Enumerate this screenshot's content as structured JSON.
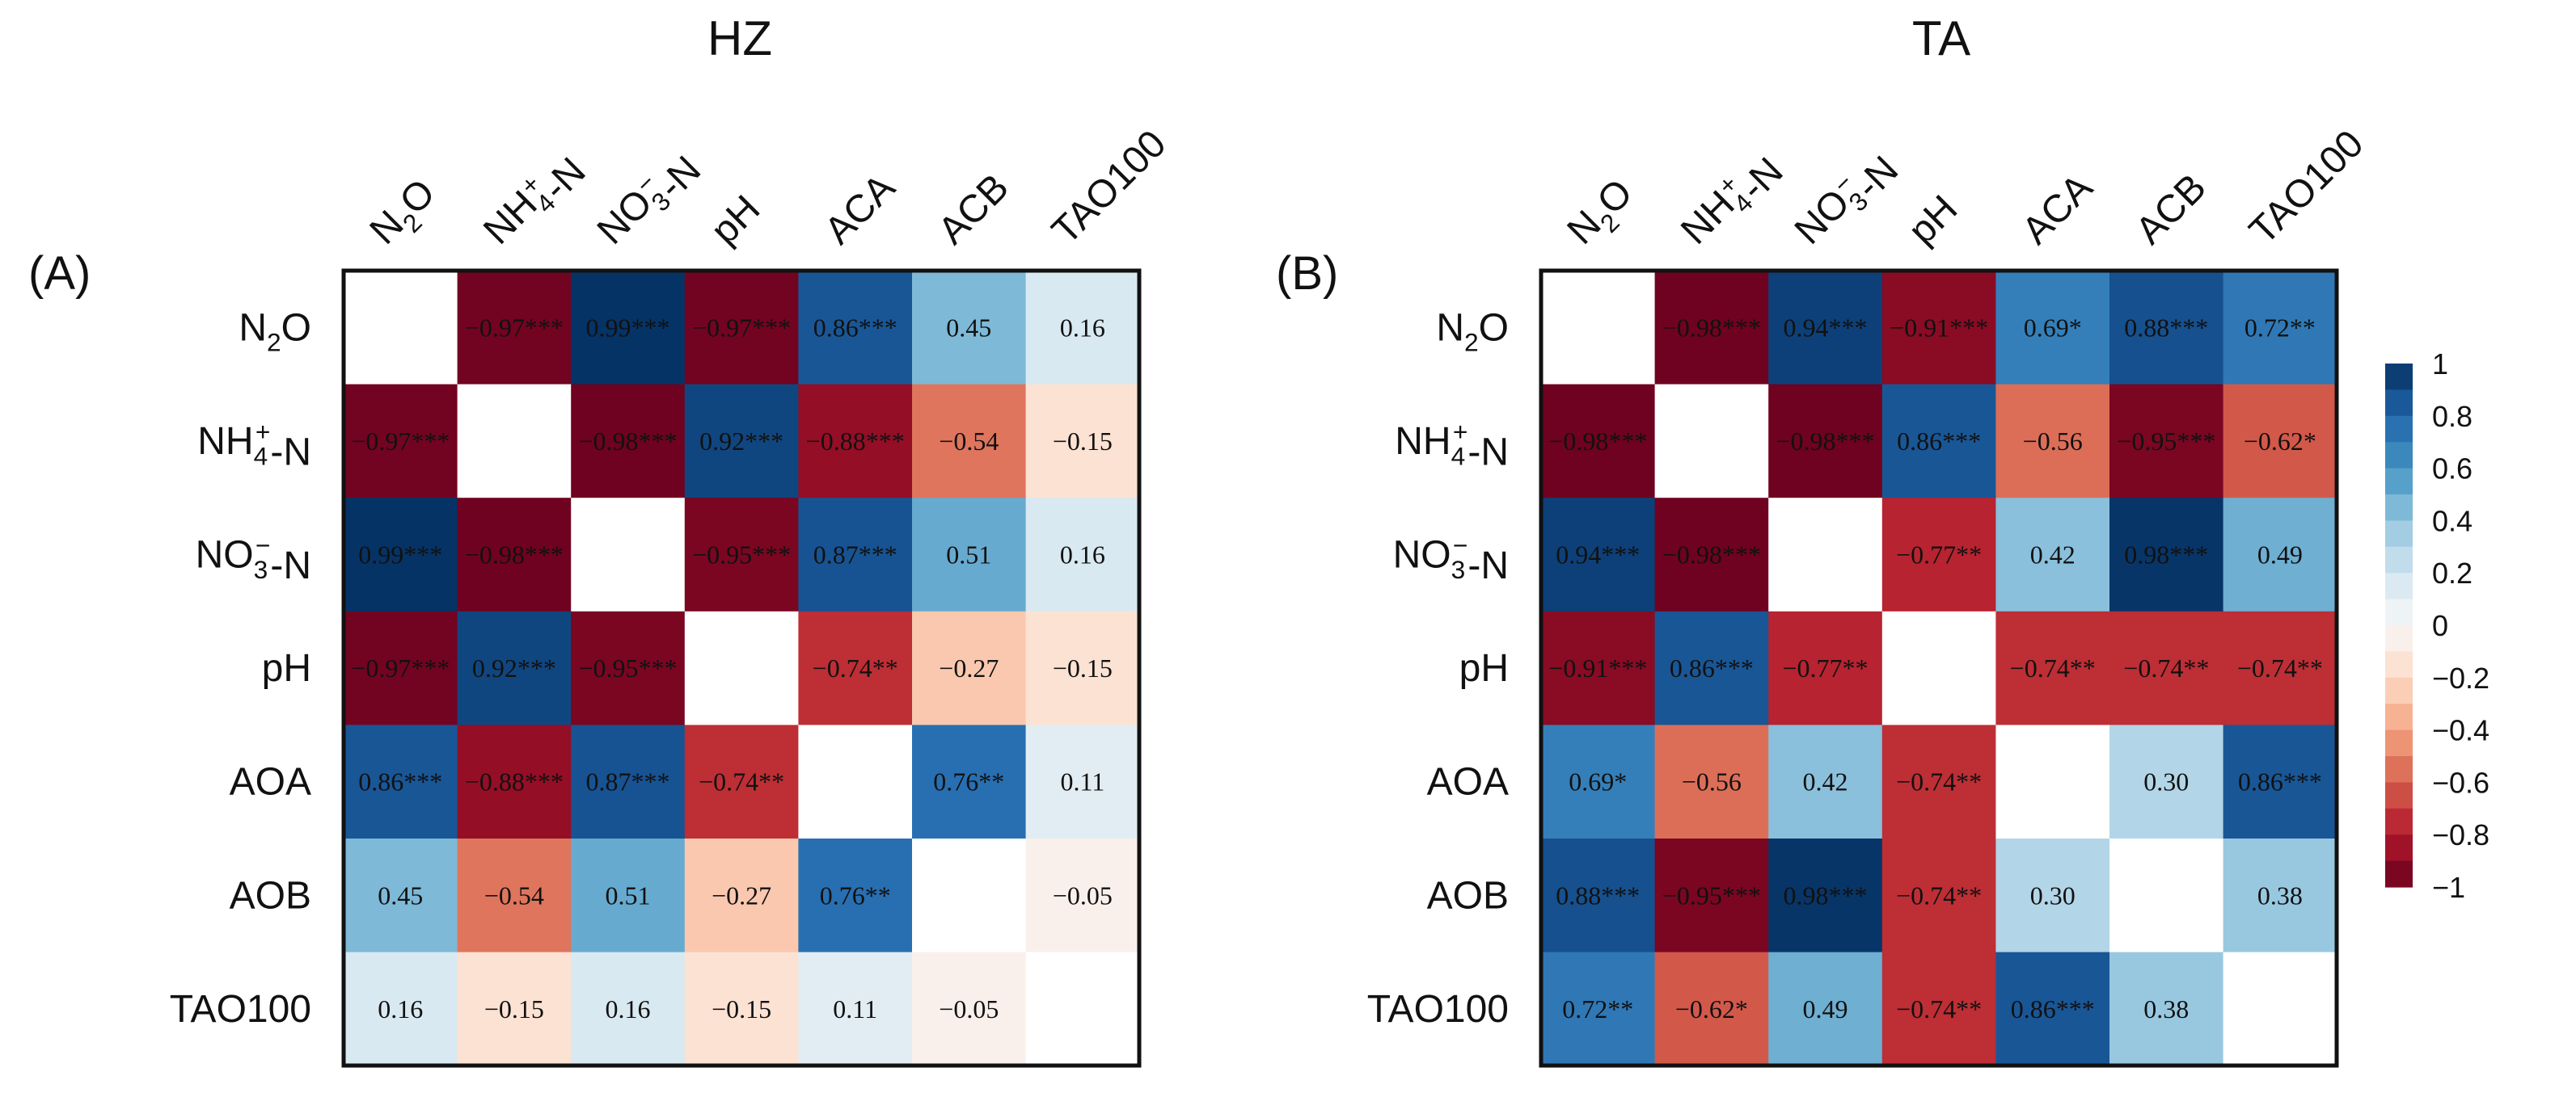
{
  "chart_data": [
    {
      "type": "heatmap",
      "panel_label": "(A)",
      "title": "HZ",
      "rows": [
        "N2O",
        "NH4+-N",
        "NO3−-N",
        "pH",
        "AOA",
        "AOB",
        "TAO100"
      ],
      "row_labels": [
        {
          "main": "N",
          "sub": "2",
          "sup": "",
          "rest": "O"
        },
        {
          "main": "NH",
          "sub": "4",
          "sup": "+",
          "rest": "-N"
        },
        {
          "main": "NO",
          "sub": "3",
          "sup": "−",
          "rest": "-N"
        },
        {
          "main": "pH",
          "sub": "",
          "sup": "",
          "rest": ""
        },
        {
          "main": "AOA",
          "sub": "",
          "sup": "",
          "rest": ""
        },
        {
          "main": "AOB",
          "sub": "",
          "sup": "",
          "rest": ""
        },
        {
          "main": "TAO100",
          "sub": "",
          "sup": "",
          "rest": ""
        }
      ],
      "columns": [
        "N2O",
        "NH4+-N",
        "NO3−-N",
        "pH",
        "ACA",
        "ACB",
        "TAO100"
      ],
      "column_labels": [
        {
          "main": "N",
          "sub": "2",
          "sup": "",
          "rest": "O"
        },
        {
          "main": "NH",
          "sub": "4",
          "sup": "+",
          "rest": "-N"
        },
        {
          "main": "NO",
          "sub": "3",
          "sup": "−",
          "rest": "-N"
        },
        {
          "main": "pH",
          "sub": "",
          "sup": "",
          "rest": ""
        },
        {
          "main": "ACA",
          "sub": "",
          "sup": "",
          "rest": ""
        },
        {
          "main": "ACB",
          "sub": "",
          "sup": "",
          "rest": ""
        },
        {
          "main": "TAO100",
          "sub": "",
          "sup": "",
          "rest": ""
        }
      ],
      "values": [
        [
          null,
          -0.97,
          0.99,
          -0.97,
          0.86,
          0.45,
          0.16
        ],
        [
          -0.97,
          null,
          -0.98,
          0.92,
          -0.88,
          -0.54,
          -0.15
        ],
        [
          0.99,
          -0.98,
          null,
          -0.95,
          0.87,
          0.51,
          0.16
        ],
        [
          -0.97,
          0.92,
          -0.95,
          null,
          -0.74,
          -0.27,
          -0.15
        ],
        [
          0.86,
          -0.88,
          0.87,
          -0.74,
          null,
          0.76,
          0.11
        ],
        [
          0.45,
          -0.54,
          0.51,
          -0.27,
          0.76,
          null,
          -0.05
        ],
        [
          0.16,
          -0.15,
          0.16,
          -0.15,
          0.11,
          -0.05,
          null
        ]
      ],
      "labels": [
        [
          "",
          "−0.97***",
          "0.99***",
          "−0.97***",
          "0.86***",
          "0.45",
          "0.16"
        ],
        [
          "−0.97***",
          "",
          "−0.98***",
          "0.92***",
          "−0.88***",
          "−0.54",
          "−0.15"
        ],
        [
          "0.99***",
          "−0.98***",
          "",
          "−0.95***",
          "0.87***",
          "0.51",
          "0.16"
        ],
        [
          "−0.97***",
          "0.92***",
          "−0.95***",
          "",
          "−0.74**",
          "−0.27",
          "−0.15"
        ],
        [
          "0.86***",
          "−0.88***",
          "0.87***",
          "−0.74**",
          "",
          "0.76**",
          "0.11"
        ],
        [
          "0.45",
          "−0.54",
          "0.51",
          "−0.27",
          "0.76**",
          "",
          "−0.05"
        ],
        [
          "0.16",
          "−0.15",
          "0.16",
          "−0.15",
          "0.11",
          "−0.05",
          ""
        ]
      ]
    },
    {
      "type": "heatmap",
      "panel_label": "(B)",
      "title": "TA",
      "rows": [
        "N2O",
        "NH4+-N",
        "NO3−-N",
        "pH",
        "AOA",
        "AOB",
        "TAO100"
      ],
      "row_labels": [
        {
          "main": "N",
          "sub": "2",
          "sup": "",
          "rest": "O"
        },
        {
          "main": "NH",
          "sub": "4",
          "sup": "+",
          "rest": "-N"
        },
        {
          "main": "NO",
          "sub": "3",
          "sup": "−",
          "rest": "-N"
        },
        {
          "main": "pH",
          "sub": "",
          "sup": "",
          "rest": ""
        },
        {
          "main": "AOA",
          "sub": "",
          "sup": "",
          "rest": ""
        },
        {
          "main": "AOB",
          "sub": "",
          "sup": "",
          "rest": ""
        },
        {
          "main": "TAO100",
          "sub": "",
          "sup": "",
          "rest": ""
        }
      ],
      "columns": [
        "N2O",
        "NH4+-N",
        "NO3−-N",
        "pH",
        "ACA",
        "ACB",
        "TAO100"
      ],
      "column_labels": [
        {
          "main": "N",
          "sub": "2",
          "sup": "",
          "rest": "O"
        },
        {
          "main": "NH",
          "sub": "4",
          "sup": "+",
          "rest": "-N"
        },
        {
          "main": "NO",
          "sub": "3",
          "sup": "−",
          "rest": "-N"
        },
        {
          "main": "pH",
          "sub": "",
          "sup": "",
          "rest": ""
        },
        {
          "main": "ACA",
          "sub": "",
          "sup": "",
          "rest": ""
        },
        {
          "main": "ACB",
          "sub": "",
          "sup": "",
          "rest": ""
        },
        {
          "main": "TAO100",
          "sub": "",
          "sup": "",
          "rest": ""
        }
      ],
      "values": [
        [
          null,
          -0.98,
          0.94,
          -0.91,
          0.69,
          0.88,
          0.72
        ],
        [
          -0.98,
          null,
          -0.98,
          0.86,
          -0.56,
          -0.95,
          -0.62
        ],
        [
          0.94,
          -0.98,
          null,
          -0.77,
          0.42,
          0.98,
          0.49
        ],
        [
          -0.91,
          0.86,
          -0.77,
          null,
          -0.74,
          -0.74,
          -0.74
        ],
        [
          0.69,
          -0.56,
          0.42,
          -0.74,
          null,
          0.3,
          0.86
        ],
        [
          0.88,
          -0.95,
          0.98,
          -0.74,
          0.3,
          null,
          0.38
        ],
        [
          0.72,
          -0.62,
          0.49,
          -0.74,
          0.86,
          0.38,
          null
        ]
      ],
      "labels": [
        [
          "",
          "−0.98***",
          "0.94***",
          "−0.91***",
          "0.69*",
          "0.88***",
          "0.72**"
        ],
        [
          "−0.98***",
          "",
          "−0.98***",
          "0.86***",
          "−0.56",
          "−0.95***",
          "−0.62*"
        ],
        [
          "0.94***",
          "−0.98***",
          "",
          "−0.77**",
          "0.42",
          "0.98***",
          "0.49"
        ],
        [
          "−0.91***",
          "0.86***",
          "−0.77**",
          "",
          "−0.74**",
          "−0.74**",
          "−0.74**"
        ],
        [
          "0.69*",
          "−0.56",
          "0.42",
          "−0.74**",
          "",
          "0.30",
          "0.86***"
        ],
        [
          "0.88***",
          "−0.95***",
          "0.98***",
          "−0.74**",
          "0.30",
          "",
          "0.38"
        ],
        [
          "0.72**",
          "−0.62*",
          "0.49",
          "−0.74**",
          "0.86***",
          "0.38",
          ""
        ]
      ]
    }
  ],
  "colorbar": {
    "range": [
      -1,
      1
    ],
    "ticks": [
      1,
      0.8,
      0.6,
      0.4,
      0.2,
      0,
      -0.2,
      -0.4,
      -0.6,
      -0.8,
      -1
    ],
    "tick_labels": [
      "1",
      "0.8",
      "0.6",
      "0.4",
      "0.2",
      "0",
      "−0.2",
      "−0.4",
      "−0.6",
      "−0.8",
      "−1"
    ],
    "palette": [
      "#67001f",
      "#b2182b",
      "#d6604d",
      "#f4a582",
      "#fddbc7",
      "#f7f7f7",
      "#d1e5f0",
      "#92c5de",
      "#4393c3",
      "#2166ac",
      "#053061"
    ]
  }
}
